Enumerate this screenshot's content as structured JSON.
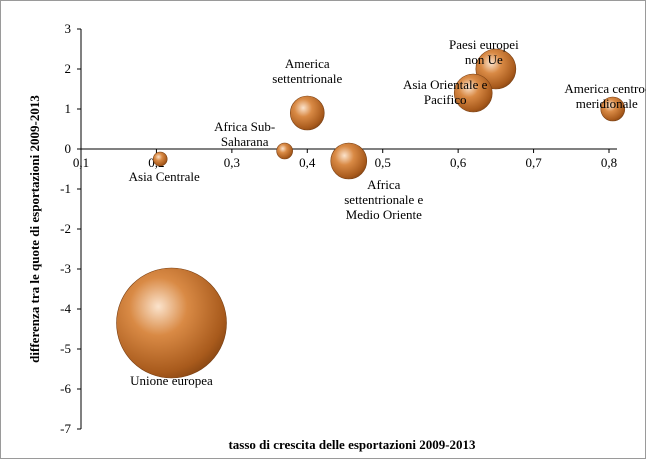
{
  "chart_data": {
    "type": "bubble",
    "xlabel": "tasso di crescita delle esportazioni 2009-2013",
    "ylabel": "differenza tra le quote di esportazioni 2009-2013",
    "xlim": [
      0.1,
      0.8
    ],
    "ylim": [
      -7,
      3
    ],
    "x_ticks": [
      "0,1",
      "0,2",
      "0,3",
      "0,4",
      "0,5",
      "0,6",
      "0,7",
      "0,8"
    ],
    "y_ticks": [
      "3",
      "2",
      "1",
      "0",
      "-1",
      "-2",
      "-3",
      "-4",
      "-5",
      "-6",
      "-7"
    ],
    "bubble_color": "#c8742c",
    "points": [
      {
        "label": [
          "Unione europea"
        ],
        "x": 0.22,
        "y": -4.35,
        "size": 55
      },
      {
        "label": [
          "Paesi europei",
          "non Ue"
        ],
        "x": 0.65,
        "y": 2.0,
        "size": 20
      },
      {
        "label": [
          "Asia Orientale e",
          "Pacifico"
        ],
        "x": 0.62,
        "y": 1.4,
        "size": 19
      },
      {
        "label": [
          "America",
          "settentrionale"
        ],
        "x": 0.4,
        "y": 0.9,
        "size": 17
      },
      {
        "label": [
          "Africa",
          "settentrionale e",
          "Medio Oriente"
        ],
        "x": 0.455,
        "y": -0.3,
        "size": 18
      },
      {
        "label": [
          "America centro-",
          "meridionale"
        ],
        "x": 0.805,
        "y": 1.0,
        "size": 12
      },
      {
        "label": [
          "Africa Sub-",
          "Saharana"
        ],
        "x": 0.37,
        "y": -0.05,
        "size": 8
      },
      {
        "label": [
          "Asia Centrale"
        ],
        "x": 0.205,
        "y": -0.25,
        "size": 7
      }
    ]
  }
}
